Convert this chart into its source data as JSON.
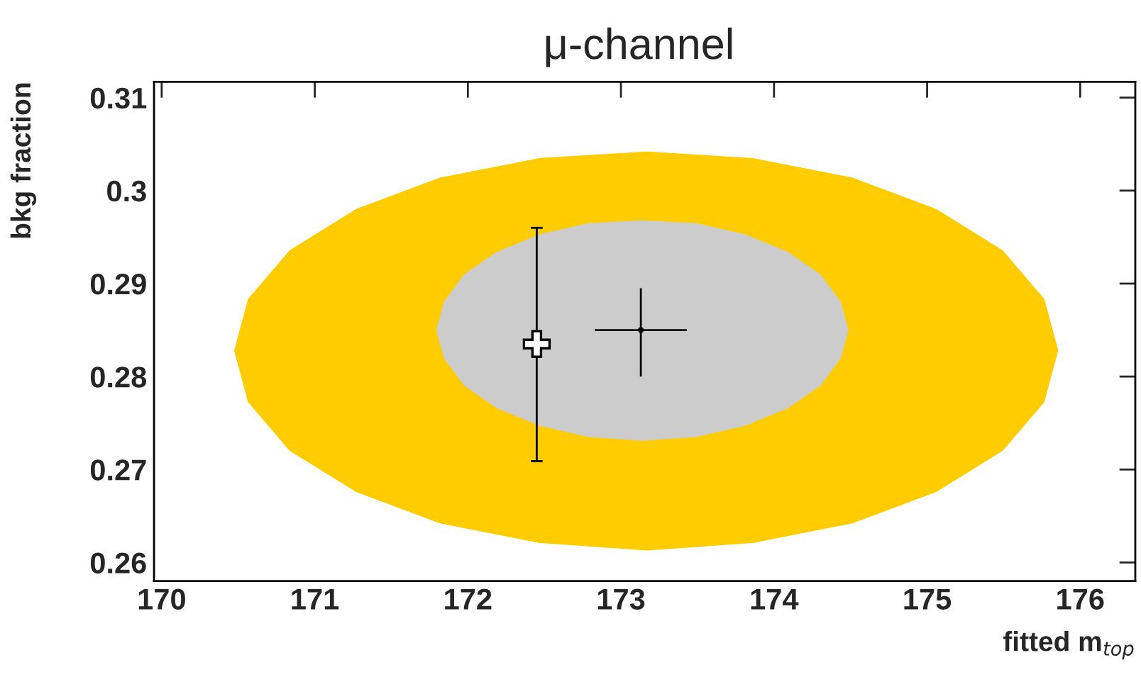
{
  "chart_data": {
    "type": "scatter",
    "title": "μ-channel",
    "xlabel": "fitted m$_{top}$",
    "ylabel": "bkg fraction",
    "xlim": [
      169.95,
      176.36
    ],
    "ylim": [
      0.258,
      0.3117
    ],
    "xticks": [
      170,
      171,
      172,
      173,
      174,
      175,
      176
    ],
    "yticks": [
      0.26,
      0.27,
      0.28,
      0.29,
      0.3,
      0.31
    ],
    "grid": false,
    "legend": false,
    "series": [
      {
        "type": "area",
        "color": "#ffcc00",
        "x": [
          170.48,
          170.57,
          170.84,
          171.27,
          171.82,
          172.47,
          173.17,
          173.86,
          174.51,
          175.06,
          175.49,
          175.76,
          175.85,
          175.76,
          175.49,
          175.06,
          174.51,
          173.86,
          173.17,
          172.47,
          171.82,
          171.27,
          170.84,
          170.57
        ],
        "values": [
          0.2828,
          0.2883,
          0.2935,
          0.2979,
          0.3013,
          0.3034,
          0.3041,
          0.3034,
          0.3013,
          0.2979,
          0.2935,
          0.2883,
          0.2828,
          0.2773,
          0.2721,
          0.2677,
          0.2643,
          0.2622,
          0.2614,
          0.2622,
          0.2643,
          0.2677,
          0.2721,
          0.2773
        ]
      },
      {
        "type": "area",
        "color": "#cccccc",
        "x": [
          171.8,
          171.85,
          171.98,
          172.19,
          172.47,
          172.79,
          173.14,
          173.49,
          173.81,
          174.09,
          174.3,
          174.43,
          174.48,
          174.43,
          174.3,
          174.09,
          173.81,
          173.49,
          173.14,
          172.79,
          172.47,
          172.19,
          171.98,
          171.85
        ],
        "values": [
          0.285,
          0.288,
          0.2909,
          0.2933,
          0.2952,
          0.2964,
          0.2967,
          0.2964,
          0.2952,
          0.2933,
          0.2909,
          0.288,
          0.285,
          0.282,
          0.2791,
          0.2767,
          0.2748,
          0.2736,
          0.2732,
          0.2736,
          0.2748,
          0.2767,
          0.2791,
          0.282
        ]
      },
      {
        "color": "#000000",
        "marker": "none",
        "x": [
          173.13
        ],
        "values": [
          0.285
        ],
        "errors": [
          [
            0.28,
            0.2895
          ]
        ],
        "xerrors": [
          [
            172.83,
            173.43
          ]
        ]
      },
      {
        "color": "#000000",
        "marker": "cross",
        "x": [
          172.45
        ],
        "values": [
          0.2835
        ],
        "errors": [
          [
            0.2709,
            0.296
          ]
        ]
      }
    ]
  }
}
